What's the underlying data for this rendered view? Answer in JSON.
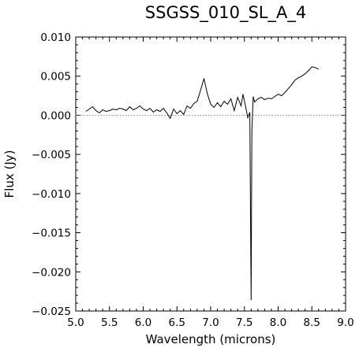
{
  "chart_data": {
    "type": "line",
    "title": "SSGSS_010_SL_A_4",
    "xlabel": "Wavelength (microns)",
    "ylabel": "Flux (Jy)",
    "xlim": [
      5.0,
      9.0
    ],
    "ylim": [
      -0.025,
      0.01
    ],
    "x_ticks": [
      5.0,
      5.5,
      6.0,
      6.5,
      7.0,
      7.5,
      8.0,
      8.5,
      9.0
    ],
    "x_tick_labels": [
      "5.0",
      "5.5",
      "6.0",
      "6.5",
      "7.0",
      "7.5",
      "8.0",
      "8.5",
      "9.0"
    ],
    "y_ticks": [
      0.01,
      0.005,
      0.0,
      -0.005,
      -0.01,
      -0.015,
      -0.02,
      -0.025
    ],
    "y_tick_labels": [
      "0.010",
      "0.005",
      "0.000",
      "−0.005",
      "−0.010",
      "−0.015",
      "−0.020",
      "−0.025"
    ],
    "grid": false,
    "reference_line": {
      "y": 0.0,
      "style": "dotted"
    },
    "series": [
      {
        "x": [
          5.15,
          5.2,
          5.25,
          5.3,
          5.35,
          5.4,
          5.45,
          5.5,
          5.55,
          5.6,
          5.65,
          5.7,
          5.75,
          5.8,
          5.85,
          5.9,
          5.95,
          6.0,
          6.05,
          6.1,
          6.15,
          6.2,
          6.25,
          6.3,
          6.35,
          6.4,
          6.45,
          6.5,
          6.55,
          6.6,
          6.65,
          6.7,
          6.75,
          6.8,
          6.85,
          6.9,
          6.95,
          7.0,
          7.05,
          7.1,
          7.15,
          7.2,
          7.25,
          7.3,
          7.35,
          7.4,
          7.45,
          7.48,
          7.52,
          7.55,
          7.58,
          7.6,
          7.61,
          7.63,
          7.65,
          7.7,
          7.75,
          7.8,
          7.85,
          7.9,
          7.95,
          8.0,
          8.05,
          8.1,
          8.15,
          8.2,
          8.25,
          8.3,
          8.35,
          8.4,
          8.45,
          8.5,
          8.55,
          8.6
        ],
        "y": [
          0.0005,
          0.0008,
          0.0011,
          0.0006,
          0.0003,
          0.0007,
          0.0005,
          0.0006,
          0.0008,
          0.0007,
          0.0009,
          0.0008,
          0.0006,
          0.0011,
          0.0007,
          0.0009,
          0.0012,
          0.0008,
          0.0006,
          0.0009,
          0.0004,
          0.0007,
          0.0005,
          0.0009,
          0.0003,
          -0.0004,
          0.0008,
          0.0002,
          0.0006,
          0.0001,
          0.0012,
          0.0009,
          0.0015,
          0.0018,
          0.0032,
          0.0047,
          0.0028,
          0.0014,
          0.001,
          0.0016,
          0.0011,
          0.0018,
          0.0014,
          0.0021,
          0.0006,
          0.0023,
          0.0012,
          0.0027,
          0.001,
          -0.0003,
          0.0004,
          -0.0236,
          -0.0021,
          0.0024,
          0.0017,
          0.0021,
          0.0023,
          0.002,
          0.0022,
          0.0021,
          0.0024,
          0.0027,
          0.0025,
          0.0029,
          0.0034,
          0.0039,
          0.0045,
          0.0048,
          0.005,
          0.0053,
          0.0057,
          0.0062,
          0.0061,
          0.0059
        ]
      }
    ]
  }
}
